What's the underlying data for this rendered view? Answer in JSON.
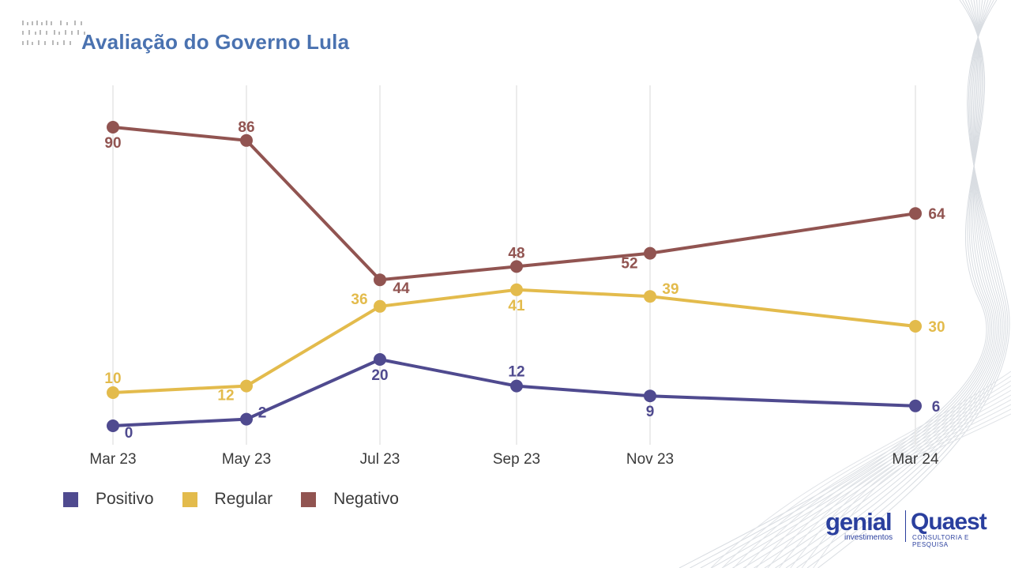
{
  "title": "Avaliação do Governo Lula",
  "chart_data": {
    "type": "line",
    "title": "Avaliação do Governo Lula",
    "categories": [
      "Mar 23",
      "May 23",
      "Jul 23",
      "Sep 23",
      "Nov 23",
      "Mar 24"
    ],
    "grid": "vertical",
    "legend_position": "bottom-left",
    "series": [
      {
        "name": "Positivo",
        "color": "#4f4a8f",
        "values": [
          0,
          2,
          20,
          12,
          9,
          6
        ]
      },
      {
        "name": "Regular",
        "color": "#e3bb4c",
        "values": [
          10,
          12,
          36,
          41,
          39,
          30
        ]
      },
      {
        "name": "Negativo",
        "color": "#915451",
        "values": [
          90,
          86,
          44,
          48,
          52,
          64
        ]
      }
    ]
  },
  "logos": {
    "genial": "genial",
    "genial_sub": "investimentos",
    "quaest": "Quaest",
    "quaest_sub": "CONSULTORIA E PESQUISA"
  }
}
